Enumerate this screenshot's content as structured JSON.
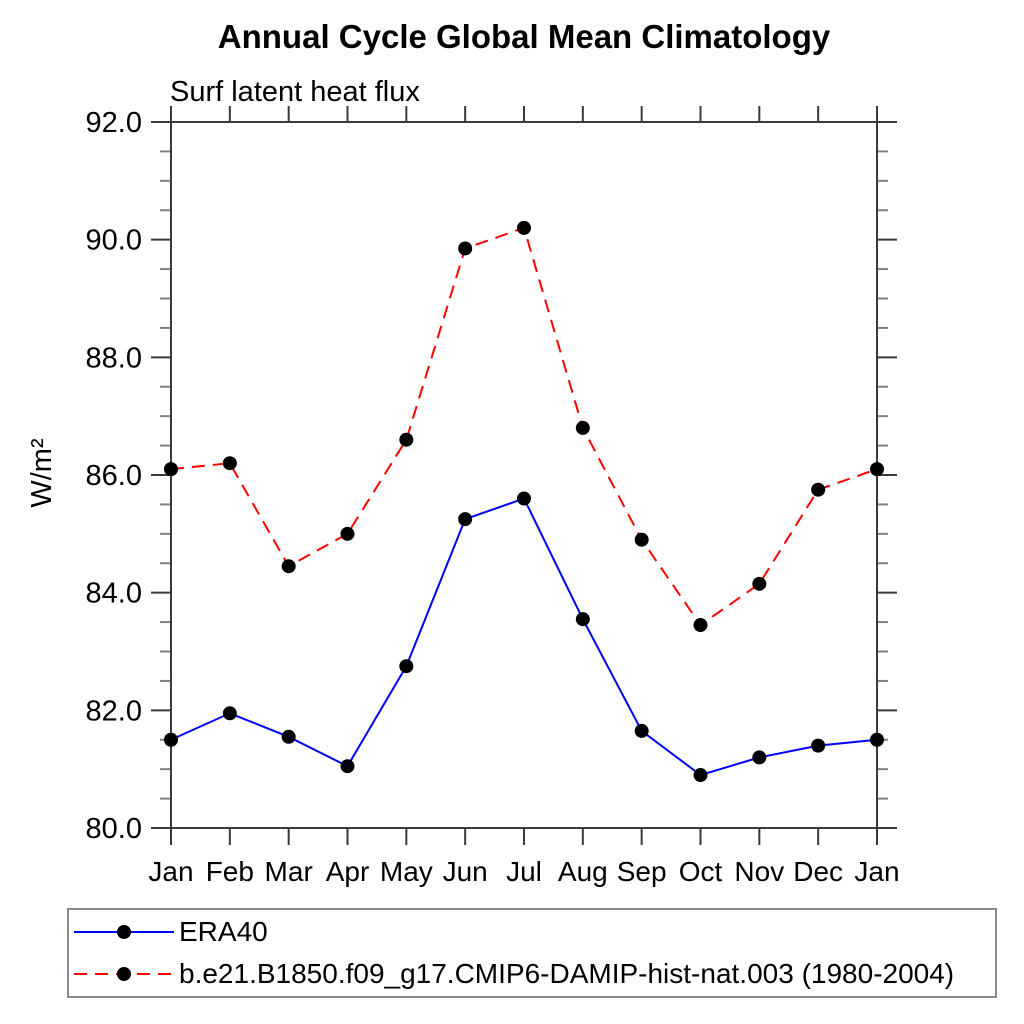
{
  "chart_data": {
    "type": "line",
    "title": "Annual Cycle Global Mean Climatology",
    "subtitle": "Surf latent heat flux",
    "ylabel": "W/m²",
    "xlabel": "",
    "categories": [
      "Jan",
      "Feb",
      "Mar",
      "Apr",
      "May",
      "Jun",
      "Jul",
      "Aug",
      "Sep",
      "Oct",
      "Nov",
      "Dec",
      "Jan"
    ],
    "ylim": [
      80.0,
      92.0
    ],
    "ytick_step": 2.0,
    "yminor_step": 0.5,
    "ytick_decimals": 1,
    "grid": false,
    "legend_position": "bottom-left-box",
    "axis_color": "#3a3a3a",
    "minor_tick_color": "#808080",
    "text_color": "#000000",
    "series": [
      {
        "name": "ERA40",
        "line_color": "#0000ff",
        "line_style": "solid",
        "marker": "filled-circle",
        "marker_color": "#000000",
        "values": [
          81.5,
          81.95,
          81.55,
          81.05,
          82.75,
          85.25,
          85.6,
          83.55,
          81.65,
          80.9,
          81.2,
          81.4,
          81.5
        ]
      },
      {
        "name": "b.e21.B1850.f09_g17.CMIP6-DAMIP-hist-nat.003 (1980-2004)",
        "line_color": "#ff0000",
        "line_style": "dashed",
        "marker": "filled-circle",
        "marker_color": "#000000",
        "values": [
          86.1,
          86.2,
          84.45,
          85.0,
          86.6,
          89.85,
          90.2,
          86.8,
          84.9,
          83.45,
          84.15,
          85.75,
          86.1
        ]
      }
    ]
  }
}
